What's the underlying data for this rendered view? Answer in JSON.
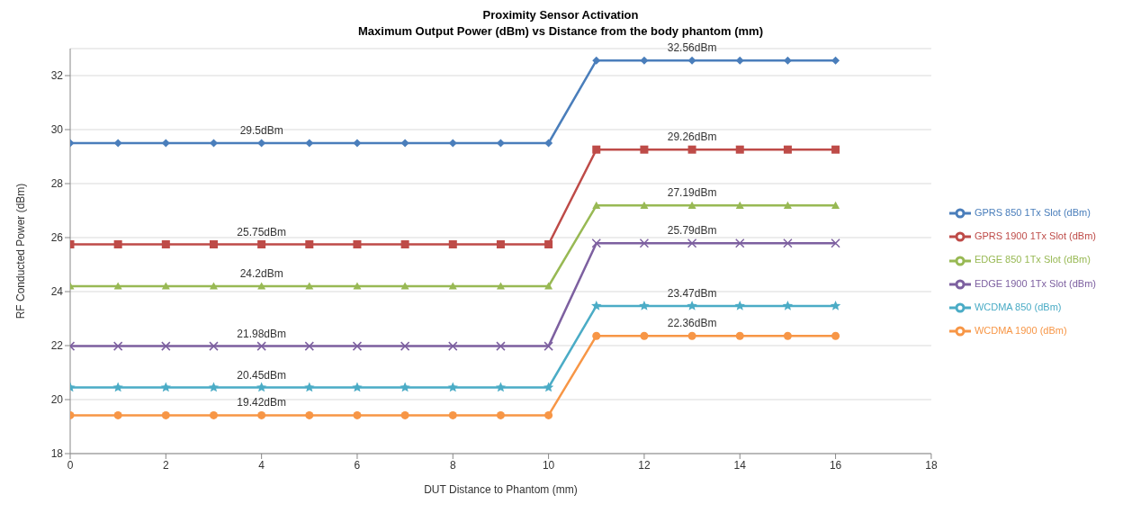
{
  "chart_data": {
    "type": "line",
    "title": "Proximity Sensor Activation",
    "subtitle": "Maximum Output Power (dBm) vs Distance from the body phantom (mm)",
    "xlabel": "DUT Distance to Phantom (mm)",
    "ylabel": "RF Conducted  Power (dBm)",
    "x": [
      0,
      1,
      2,
      3,
      4,
      5,
      6,
      7,
      8,
      9,
      10,
      11,
      12,
      13,
      14,
      15,
      16
    ],
    "series": [
      {
        "name": "GPRS 850 1Tx Slot (dBm)",
        "color": "#4a7ebb",
        "marker": "diamond",
        "values": [
          29.5,
          29.5,
          29.5,
          29.5,
          29.5,
          29.5,
          29.5,
          29.5,
          29.5,
          29.5,
          29.5,
          32.56,
          32.56,
          32.56,
          32.56,
          32.56,
          32.56
        ],
        "value_labels": [
          null,
          null,
          null,
          null,
          "29.5dBm",
          null,
          null,
          null,
          null,
          null,
          null,
          null,
          null,
          "32.56dBm",
          null,
          null,
          null
        ]
      },
      {
        "name": "GPRS 1900 1Tx Slot (dBm)",
        "color": "#be4b48",
        "marker": "square",
        "values": [
          25.75,
          25.75,
          25.75,
          25.75,
          25.75,
          25.75,
          25.75,
          25.75,
          25.75,
          25.75,
          25.75,
          29.26,
          29.26,
          29.26,
          29.26,
          29.26,
          29.26
        ],
        "value_labels": [
          null,
          null,
          null,
          null,
          "25.75dBm",
          null,
          null,
          null,
          null,
          null,
          null,
          null,
          null,
          "29.26dBm",
          null,
          null,
          null
        ]
      },
      {
        "name": "EDGE 850 1Tx Slot (dBm)",
        "color": "#98b954",
        "marker": "triangle",
        "values": [
          24.2,
          24.2,
          24.2,
          24.2,
          24.2,
          24.2,
          24.2,
          24.2,
          24.2,
          24.2,
          24.2,
          27.19,
          27.19,
          27.19,
          27.19,
          27.19,
          27.19
        ],
        "value_labels": [
          null,
          null,
          null,
          null,
          "24.2dBm",
          null,
          null,
          null,
          null,
          null,
          null,
          null,
          null,
          "27.19dBm",
          null,
          null,
          null
        ]
      },
      {
        "name": "EDGE 1900 1Tx Slot (dBm)",
        "color": "#7d60a0",
        "marker": "cross",
        "values": [
          21.98,
          21.98,
          21.98,
          21.98,
          21.98,
          21.98,
          21.98,
          21.98,
          21.98,
          21.98,
          21.98,
          25.79,
          25.79,
          25.79,
          25.79,
          25.79,
          25.79
        ],
        "value_labels": [
          null,
          null,
          null,
          null,
          "21.98dBm",
          null,
          null,
          null,
          null,
          null,
          null,
          null,
          null,
          "25.79dBm",
          null,
          null,
          null
        ]
      },
      {
        "name": "WCDMA 850 (dBm)",
        "color": "#4bacc6",
        "marker": "star",
        "values": [
          20.45,
          20.45,
          20.45,
          20.45,
          20.45,
          20.45,
          20.45,
          20.45,
          20.45,
          20.45,
          20.45,
          23.47,
          23.47,
          23.47,
          23.47,
          23.47,
          23.47
        ],
        "value_labels": [
          null,
          null,
          null,
          null,
          "20.45dBm",
          null,
          null,
          null,
          null,
          null,
          null,
          null,
          null,
          "23.47dBm",
          null,
          null,
          null
        ]
      },
      {
        "name": "WCDMA 1900 (dBm)",
        "color": "#f79646",
        "marker": "circle",
        "values": [
          19.42,
          19.42,
          19.42,
          19.42,
          19.42,
          19.42,
          19.42,
          19.42,
          19.42,
          19.42,
          19.42,
          22.36,
          22.36,
          22.36,
          22.36,
          22.36,
          22.36
        ],
        "value_labels": [
          null,
          null,
          null,
          null,
          "19.42dBm",
          null,
          null,
          null,
          null,
          null,
          null,
          null,
          null,
          "22.36dBm",
          null,
          null,
          null
        ]
      }
    ],
    "xlim": [
      0,
      18
    ],
    "xticks": [
      0,
      2,
      4,
      6,
      8,
      10,
      12,
      14,
      16,
      18
    ],
    "ylim": [
      18,
      33
    ],
    "yticks": [
      18,
      20,
      22,
      24,
      26,
      28,
      30,
      32
    ],
    "grid": "y",
    "legend": "right",
    "line_style": "solid"
  }
}
